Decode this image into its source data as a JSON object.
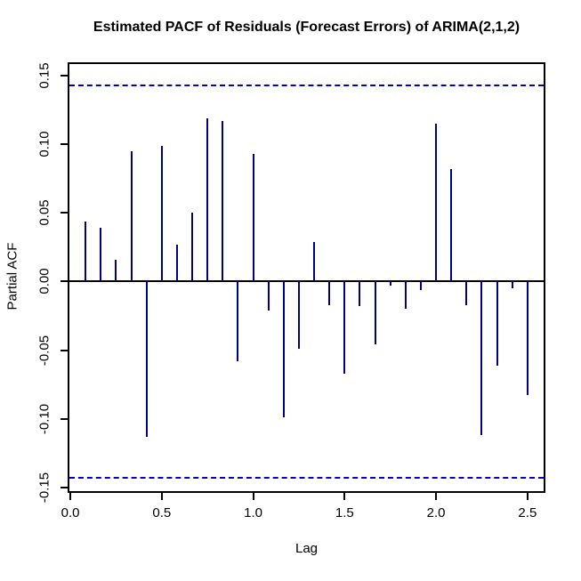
{
  "chart_data": {
    "type": "bar",
    "variant": "pacf-stem-plot",
    "title": "Estimated PACF of Residuals (Forecast Errors) of ARIMA(2,1,2)",
    "xlabel": "Lag",
    "ylabel": "Partial ACF",
    "x": [
      0.0833,
      0.1667,
      0.25,
      0.3333,
      0.4167,
      0.5,
      0.5833,
      0.6667,
      0.75,
      0.8333,
      0.9167,
      1.0,
      1.0833,
      1.1667,
      1.25,
      1.3333,
      1.4167,
      1.5,
      1.5833,
      1.6667,
      1.75,
      1.8333,
      1.9167,
      2.0,
      2.0833,
      2.1667,
      2.25,
      2.3333,
      2.4167,
      2.5
    ],
    "values": [
      0.044,
      0.039,
      0.016,
      0.095,
      -0.113,
      0.099,
      0.027,
      0.05,
      0.119,
      0.117,
      -0.058,
      0.093,
      -0.021,
      -0.099,
      -0.049,
      0.029,
      -0.017,
      -0.067,
      -0.018,
      -0.046,
      -0.003,
      -0.02,
      -0.006,
      0.115,
      0.082,
      -0.017,
      -0.112,
      -0.061,
      -0.005,
      -0.083
    ],
    "confidence_bound": 0.143,
    "x_ticks": [
      "0.0",
      "0.5",
      "1.0",
      "1.5",
      "2.0",
      "2.5"
    ],
    "y_ticks": [
      "-0.15",
      "-0.10",
      "-0.05",
      "0.00",
      "0.05",
      "0.10",
      "0.15"
    ],
    "xlim": [
      -0.015,
      2.598
    ],
    "ylim": [
      -0.154,
      0.1597
    ],
    "grid": false,
    "legend": null,
    "colors": {
      "spike": "#00008B",
      "ci_line": "#0000CD",
      "axis": "#000000",
      "background": "#FFFFFF",
      "text": "#000000"
    }
  }
}
